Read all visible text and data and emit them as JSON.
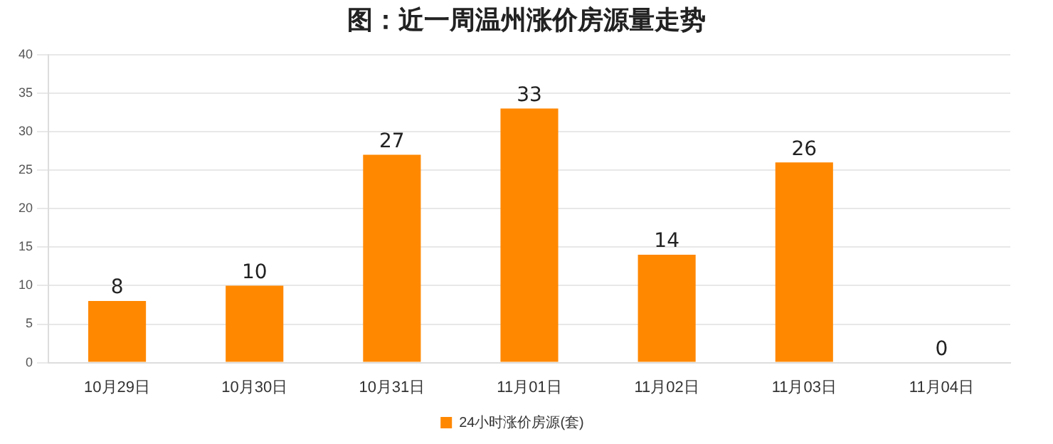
{
  "chart_data": {
    "type": "bar",
    "title": "图：近一周温州涨价房源量走势",
    "categories": [
      "10月29日",
      "10月30日",
      "10月31日",
      "11月01日",
      "11月02日",
      "11月03日",
      "11月04日"
    ],
    "series": [
      {
        "name": "24小时涨价房源(套)",
        "color": "#ff8800",
        "values": [
          8,
          10,
          27,
          33,
          14,
          26,
          0
        ]
      }
    ],
    "ylim": [
      0,
      40
    ],
    "yticks": [
      0,
      5,
      10,
      15,
      20,
      25,
      30,
      35,
      40
    ],
    "grid": "y",
    "legend": "bottom",
    "data_labels": true
  }
}
